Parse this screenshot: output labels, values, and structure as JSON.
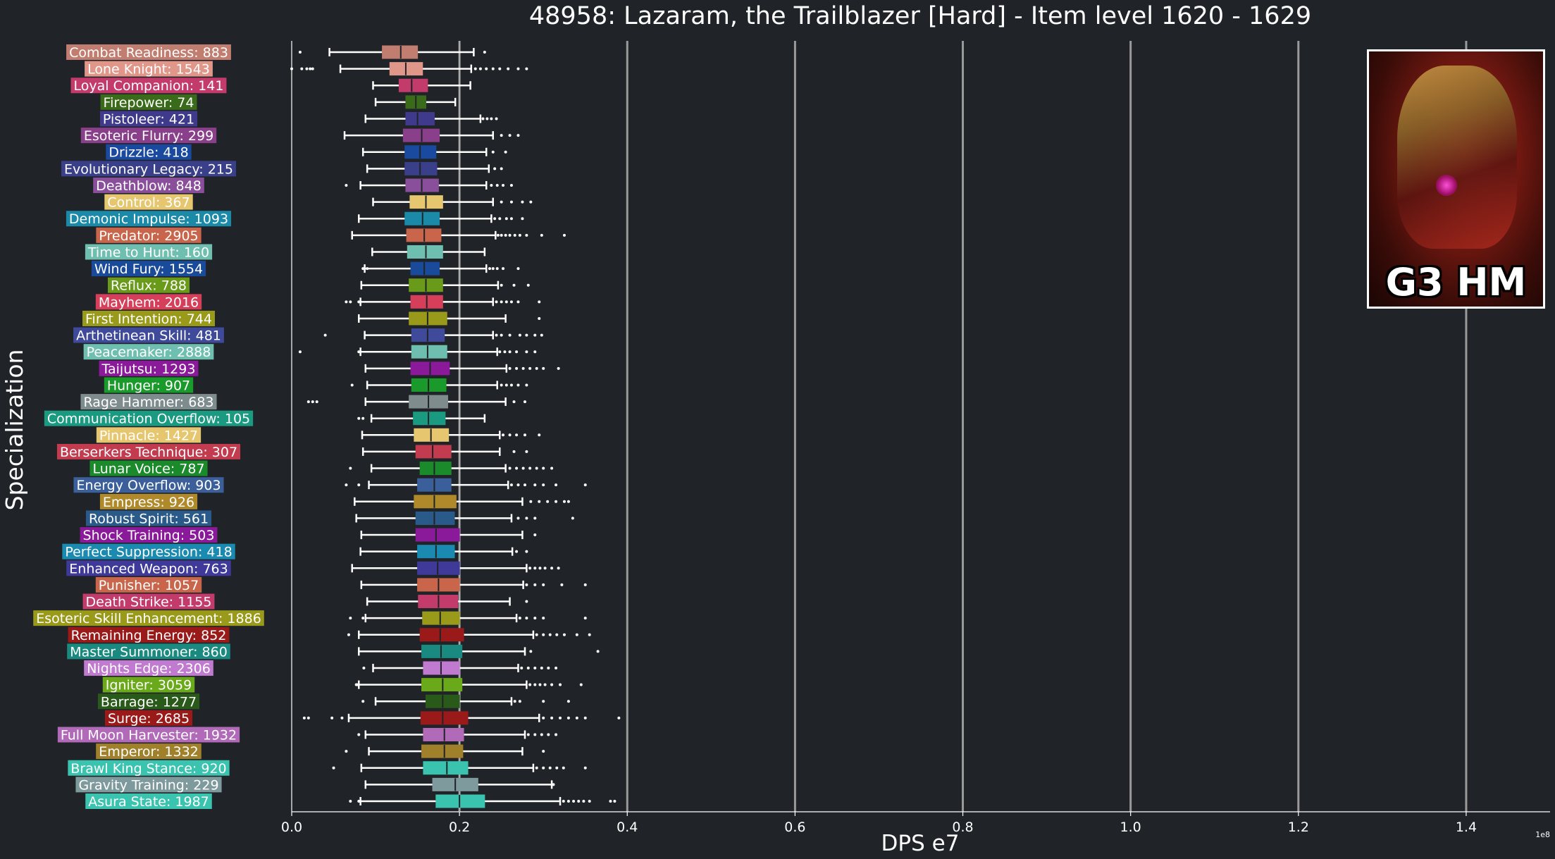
{
  "chart_data": {
    "type": "box",
    "orientation": "horizontal",
    "title": "48958: Lazaram, the Trailblazer [Hard] - Item level 1620 - 1629",
    "xlabel": "DPS e7",
    "ylabel": "Specialization",
    "x_scale_label": "1e8",
    "xlim": [
      0.0,
      1.5
    ],
    "xticks": [
      0.0,
      0.2,
      0.4,
      0.6,
      0.8,
      1.0,
      1.2,
      1.4
    ],
    "xtick_labels": [
      "0.0",
      "0.2",
      "0.4",
      "0.6",
      "0.8",
      "1.0",
      "1.2",
      "1.4"
    ],
    "grid": "vertical",
    "median_line_x": 0.2,
    "series": [
      {
        "label": "Combat Readiness: 883",
        "color": "#c17d6f",
        "box": [
          0.045,
          0.108,
          0.13,
          0.15,
          0.217
        ],
        "outliers": [
          0.01,
          0.23
        ]
      },
      {
        "label": "Lone Knight: 1543",
        "color": "#e0978a",
        "box": [
          0.058,
          0.117,
          0.136,
          0.156,
          0.214
        ],
        "outliers": [
          0.0,
          0.012,
          0.018,
          0.022,
          0.025,
          0.219,
          0.225,
          0.232,
          0.24,
          0.248,
          0.258,
          0.27,
          0.28
        ]
      },
      {
        "label": "Loyal Companion: 141",
        "color": "#c23b6b",
        "box": [
          0.097,
          0.128,
          0.143,
          0.162,
          0.213
        ],
        "outliers": []
      },
      {
        "label": "Firepower: 74",
        "color": "#3a6b1a",
        "box": [
          0.1,
          0.136,
          0.148,
          0.16,
          0.195
        ],
        "outliers": []
      },
      {
        "label": "Pistoleer: 421",
        "color": "#3f3a8c",
        "box": [
          0.088,
          0.136,
          0.15,
          0.17,
          0.225
        ],
        "outliers": [
          0.228,
          0.233,
          0.238,
          0.244
        ]
      },
      {
        "label": "Esoteric Flurry: 299",
        "color": "#8a3f8a",
        "box": [
          0.063,
          0.133,
          0.155,
          0.176,
          0.24
        ],
        "outliers": [
          0.25,
          0.26,
          0.27
        ]
      },
      {
        "label": "Drizzle: 418",
        "color": "#1a4aa0",
        "box": [
          0.085,
          0.135,
          0.153,
          0.172,
          0.232
        ],
        "outliers": [
          0.24,
          0.255
        ]
      },
      {
        "label": "Evolutionary Legacy: 215",
        "color": "#3a3f8a",
        "box": [
          0.09,
          0.135,
          0.153,
          0.173,
          0.235
        ],
        "outliers": [
          0.242,
          0.25
        ]
      },
      {
        "label": "Deathblow: 848",
        "color": "#8a4f9a",
        "box": [
          0.082,
          0.136,
          0.155,
          0.175,
          0.232
        ],
        "outliers": [
          0.065,
          0.238,
          0.245,
          0.252,
          0.262
        ]
      },
      {
        "label": "Control: 367",
        "color": "#e6c66e",
        "box": [
          0.097,
          0.141,
          0.16,
          0.18,
          0.24
        ],
        "outliers": [
          0.25,
          0.262,
          0.275,
          0.285
        ]
      },
      {
        "label": "Demonic Impulse: 1093",
        "color": "#1a8aa8",
        "box": [
          0.08,
          0.135,
          0.156,
          0.176,
          0.238
        ],
        "outliers": [
          0.242,
          0.248,
          0.256,
          0.262,
          0.275
        ]
      },
      {
        "label": "Predator: 2905",
        "color": "#c8654a",
        "box": [
          0.072,
          0.137,
          0.158,
          0.178,
          0.243
        ],
        "outliers": [
          0.246,
          0.25,
          0.255,
          0.26,
          0.266,
          0.272,
          0.28,
          0.298,
          0.325
        ]
      },
      {
        "label": "Time to Hunt: 160",
        "color": "#6fbfb0",
        "box": [
          0.096,
          0.138,
          0.16,
          0.18,
          0.23
        ],
        "outliers": []
      },
      {
        "label": "Wind Fury: 1554",
        "color": "#1a4a9a",
        "box": [
          0.087,
          0.142,
          0.158,
          0.176,
          0.232
        ],
        "outliers": [
          0.085,
          0.09,
          0.236,
          0.24,
          0.245,
          0.252,
          0.27
        ]
      },
      {
        "label": "Reflux: 788",
        "color": "#6a9a1a",
        "box": [
          0.083,
          0.14,
          0.16,
          0.18,
          0.246
        ],
        "outliers": [
          0.25,
          0.265,
          0.282
        ]
      },
      {
        "label": "Mayhem: 2016",
        "color": "#d63f5a",
        "box": [
          0.082,
          0.142,
          0.161,
          0.18,
          0.24
        ],
        "outliers": [
          0.065,
          0.07,
          0.08,
          0.244,
          0.25,
          0.256,
          0.262,
          0.27,
          0.295
        ]
      },
      {
        "label": "First Intention: 744",
        "color": "#9a9a1a",
        "box": [
          0.08,
          0.14,
          0.162,
          0.185,
          0.255
        ],
        "outliers": [
          0.295
        ]
      },
      {
        "label": "Arthetinean Skill: 481",
        "color": "#3f4a9a",
        "box": [
          0.087,
          0.143,
          0.162,
          0.182,
          0.24
        ],
        "outliers": [
          0.04,
          0.244,
          0.25,
          0.26,
          0.272,
          0.28,
          0.29,
          0.298
        ]
      },
      {
        "label": "Peacemaker: 2888",
        "color": "#6fbfb0",
        "box": [
          0.082,
          0.143,
          0.162,
          0.185,
          0.245
        ],
        "outliers": [
          0.01,
          0.08,
          0.248,
          0.254,
          0.26,
          0.268,
          0.28,
          0.29
        ]
      },
      {
        "label": "Taijutsu: 1293",
        "color": "#8a1a9a",
        "box": [
          0.088,
          0.142,
          0.165,
          0.188,
          0.256
        ],
        "outliers": [
          0.26,
          0.268,
          0.276,
          0.284,
          0.292,
          0.3,
          0.318
        ]
      },
      {
        "label": "Hunger: 907",
        "color": "#1a9a2a",
        "box": [
          0.09,
          0.143,
          0.163,
          0.184,
          0.245
        ],
        "outliers": [
          0.072,
          0.25,
          0.256,
          0.262,
          0.27,
          0.28
        ]
      },
      {
        "label": "Rage Hammer: 683",
        "color": "#7f8c8d",
        "box": [
          0.088,
          0.14,
          0.163,
          0.186,
          0.255
        ],
        "outliers": [
          0.02,
          0.025,
          0.03,
          0.265,
          0.278
        ]
      },
      {
        "label": "Communication Overflow: 105",
        "color": "#1a9a80",
        "box": [
          0.095,
          0.145,
          0.163,
          0.183,
          0.23
        ],
        "outliers": [
          0.08,
          0.085
        ]
      },
      {
        "label": "Pinnacle: 1427",
        "color": "#e6c66e",
        "box": [
          0.084,
          0.146,
          0.166,
          0.187,
          0.248
        ],
        "outliers": [
          0.252,
          0.26,
          0.268,
          0.278,
          0.295
        ]
      },
      {
        "label": "Berserkers Technique: 307",
        "color": "#c23b4f",
        "box": [
          0.085,
          0.148,
          0.168,
          0.19,
          0.248
        ],
        "outliers": [
          0.265,
          0.28
        ]
      },
      {
        "label": "Lunar Voice: 787",
        "color": "#1a8a2a",
        "box": [
          0.095,
          0.153,
          0.17,
          0.19,
          0.255
        ],
        "outliers": [
          0.07,
          0.26,
          0.268,
          0.276,
          0.284,
          0.292,
          0.3,
          0.31
        ]
      },
      {
        "label": "Energy Overflow: 903",
        "color": "#3a5f9a",
        "box": [
          0.092,
          0.15,
          0.17,
          0.19,
          0.258
        ],
        "outliers": [
          0.065,
          0.08,
          0.262,
          0.27,
          0.278,
          0.29,
          0.3,
          0.315,
          0.35
        ]
      },
      {
        "label": "Empress: 926",
        "color": "#b08a2a",
        "box": [
          0.075,
          0.146,
          0.17,
          0.196,
          0.275
        ],
        "outliers": [
          0.285,
          0.295,
          0.305,
          0.315,
          0.325,
          0.33
        ]
      },
      {
        "label": "Robust Spirit: 561",
        "color": "#2a5a8a",
        "box": [
          0.077,
          0.148,
          0.17,
          0.194,
          0.262
        ],
        "outliers": [
          0.27,
          0.28,
          0.29,
          0.335
        ]
      },
      {
        "label": "Shock Training: 503",
        "color": "#8a1a9a",
        "box": [
          0.083,
          0.148,
          0.172,
          0.2,
          0.275
        ],
        "outliers": [
          0.29
        ]
      },
      {
        "label": "Perfect Suppression: 418",
        "color": "#1a8ab0",
        "box": [
          0.082,
          0.15,
          0.172,
          0.194,
          0.263
        ],
        "outliers": [
          0.268,
          0.28
        ]
      },
      {
        "label": "Enhanced Weapon: 763",
        "color": "#3f3a9a",
        "box": [
          0.072,
          0.15,
          0.174,
          0.2,
          0.28
        ],
        "outliers": [
          0.284,
          0.29,
          0.296,
          0.302,
          0.31,
          0.318
        ]
      },
      {
        "label": "Punisher: 1057",
        "color": "#c8654a",
        "box": [
          0.083,
          0.15,
          0.175,
          0.2,
          0.276
        ],
        "outliers": [
          0.28,
          0.29,
          0.3,
          0.322,
          0.35
        ]
      },
      {
        "label": "Death Strike: 1155",
        "color": "#c23b6b",
        "box": [
          0.09,
          0.151,
          0.175,
          0.198,
          0.26
        ],
        "outliers": [
          0.28
        ]
      },
      {
        "label": "Esoteric Skill Enhancement: 1886",
        "color": "#9a9a1a",
        "box": [
          0.088,
          0.156,
          0.177,
          0.2,
          0.268
        ],
        "outliers": [
          0.07,
          0.085,
          0.272,
          0.28,
          0.29,
          0.3,
          0.35
        ]
      },
      {
        "label": "Remaining Energy: 852",
        "color": "#9a1a1a",
        "box": [
          0.08,
          0.153,
          0.177,
          0.205,
          0.288
        ],
        "outliers": [
          0.068,
          0.292,
          0.3,
          0.308,
          0.316,
          0.325,
          0.34,
          0.355
        ]
      },
      {
        "label": "Master Summoner: 860",
        "color": "#1a8a80",
        "box": [
          0.08,
          0.155,
          0.178,
          0.203,
          0.278
        ],
        "outliers": [
          0.285,
          0.365
        ]
      },
      {
        "label": "Nights Edge: 2306",
        "color": "#c07ad0",
        "box": [
          0.097,
          0.157,
          0.178,
          0.2,
          0.27
        ],
        "outliers": [
          0.086,
          0.274,
          0.282,
          0.29,
          0.298,
          0.306,
          0.315
        ]
      },
      {
        "label": "Igniter: 3059",
        "color": "#6aaa1a",
        "box": [
          0.08,
          0.155,
          0.18,
          0.203,
          0.28
        ],
        "outliers": [
          0.077,
          0.078,
          0.284,
          0.29,
          0.296,
          0.302,
          0.31,
          0.32,
          0.345
        ]
      },
      {
        "label": "Barrage: 1277",
        "color": "#2a5a1a",
        "box": [
          0.1,
          0.16,
          0.18,
          0.2,
          0.262
        ],
        "outliers": [
          0.085,
          0.266,
          0.272,
          0.3,
          0.33
        ]
      },
      {
        "label": "Surge: 2685",
        "color": "#9a1a1a",
        "box": [
          0.068,
          0.154,
          0.18,
          0.21,
          0.295
        ],
        "outliers": [
          0.015,
          0.02,
          0.048,
          0.06,
          0.3,
          0.31,
          0.32,
          0.33,
          0.34,
          0.35,
          0.39
        ]
      },
      {
        "label": "Full Moon Harvester: 1932",
        "color": "#b06ab8",
        "box": [
          0.088,
          0.157,
          0.182,
          0.205,
          0.278
        ],
        "outliers": [
          0.08,
          0.282,
          0.29,
          0.298,
          0.306,
          0.315
        ]
      },
      {
        "label": "Emperor: 1332",
        "color": "#a0802a",
        "box": [
          0.092,
          0.155,
          0.182,
          0.204,
          0.275
        ],
        "outliers": [
          0.065,
          0.3
        ]
      },
      {
        "label": "Brawl King Stance: 920",
        "color": "#3ac4b0",
        "box": [
          0.083,
          0.157,
          0.185,
          0.21,
          0.288
        ],
        "outliers": [
          0.05,
          0.292,
          0.3,
          0.308,
          0.316,
          0.324,
          0.35
        ]
      },
      {
        "label": "Gravity Training: 229",
        "color": "#7f9a9d",
        "box": [
          0.088,
          0.168,
          0.195,
          0.222,
          0.31
        ],
        "outliers": [
          0.312
        ]
      },
      {
        "label": "Asura State: 1987",
        "color": "#3ac4b0",
        "box": [
          0.082,
          0.172,
          0.2,
          0.23,
          0.32
        ],
        "outliers": [
          0.07,
          0.08,
          0.324,
          0.33,
          0.336,
          0.342,
          0.348,
          0.355,
          0.38,
          0.385
        ]
      }
    ]
  },
  "thumbnail": {
    "badge_text": "G3 HM"
  }
}
